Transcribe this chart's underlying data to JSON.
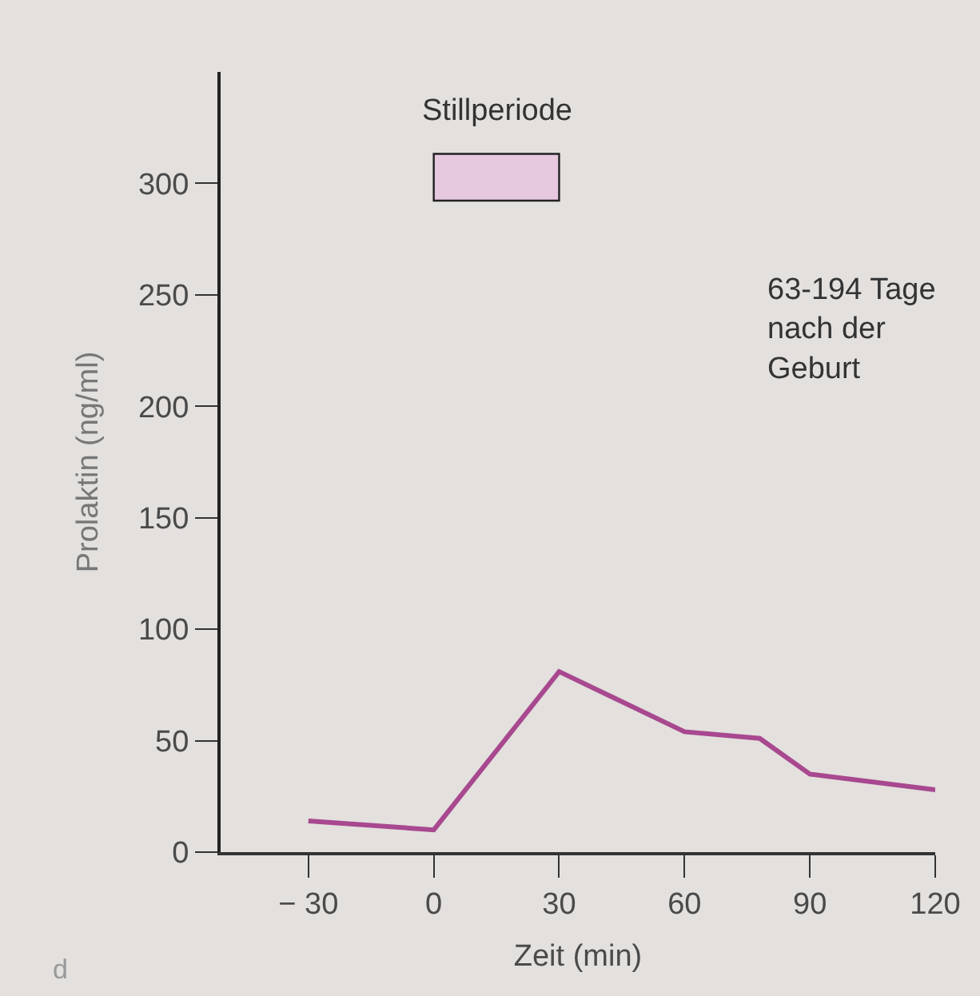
{
  "chart_data": {
    "type": "line",
    "xlabel": "Zeit (min)",
    "ylabel": "Prolaktin (ng/ml)",
    "x": [
      -30,
      0,
      30,
      60,
      78,
      90,
      120
    ],
    "series": [
      {
        "color": "#a8488f",
        "values": [
          14,
          10,
          81,
          54,
          51,
          35,
          28
        ]
      }
    ],
    "xlim": [
      -51,
      120
    ],
    "ylim": [
      0,
      350
    ],
    "xticks": [
      {
        "value": -30,
        "label": "− 30"
      },
      0,
      30,
      60,
      90,
      120
    ],
    "yticks": [
      0,
      50,
      100,
      150,
      200,
      250,
      300
    ],
    "bands": [
      {
        "axis": "x",
        "from": 0,
        "to": 30,
        "label": "Stillperiode",
        "color": "#e6c8df"
      }
    ],
    "annotations": [
      "63-194 Tage\nnach der\nGeburt",
      "d"
    ],
    "grid": false,
    "marker": "none",
    "line_style": "solid"
  }
}
